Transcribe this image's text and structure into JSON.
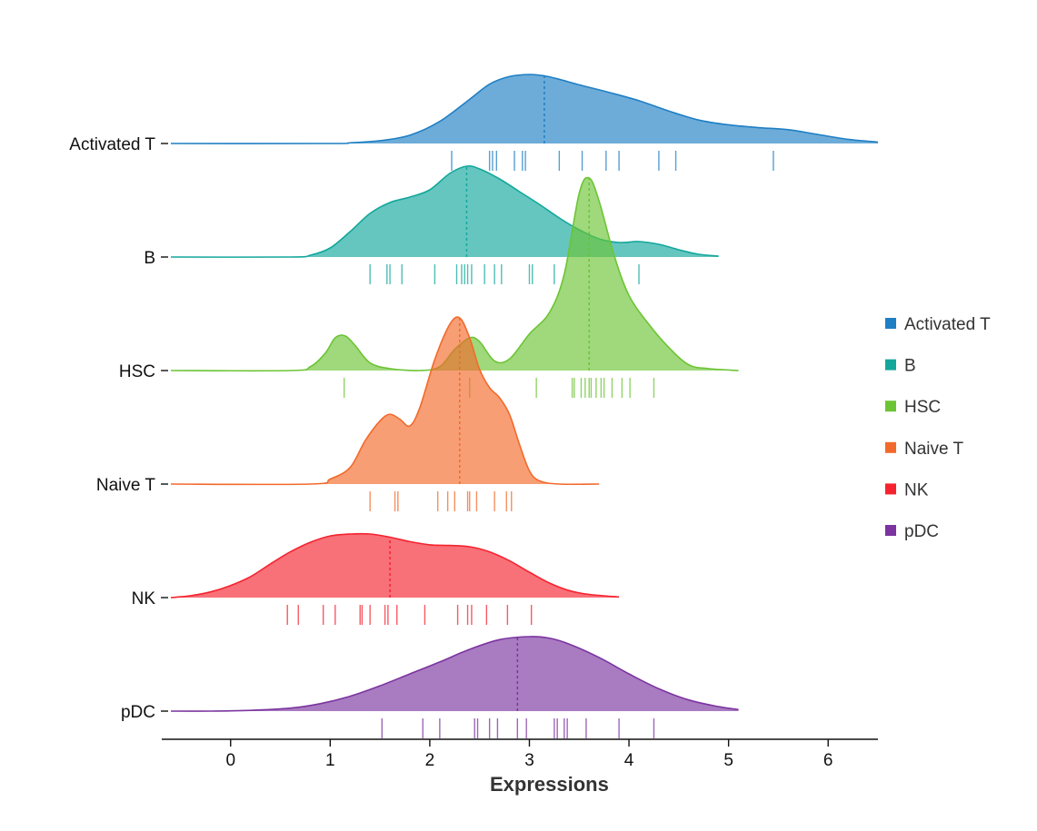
{
  "chart_data": {
    "type": "ridgeline",
    "xlabel": "Expressions",
    "xlim": [
      -0.6,
      6.5
    ],
    "xticks": [
      0,
      1,
      2,
      3,
      4,
      5,
      6
    ],
    "legend_position": "right",
    "grid": false,
    "series": [
      {
        "name": "Activated T",
        "color": "#1f7fc4",
        "median": 3.15,
        "xmax": 6.5,
        "rug": [
          2.22,
          2.6,
          2.63,
          2.67,
          2.85,
          2.93,
          2.96,
          3.3,
          3.53,
          3.77,
          3.9,
          4.3,
          4.47,
          5.45
        ],
        "density": [
          [
            -0.6,
            0
          ],
          [
            1,
            0
          ],
          [
            1.2,
            0.01
          ],
          [
            1.5,
            0.04
          ],
          [
            1.8,
            0.12
          ],
          [
            2.1,
            0.32
          ],
          [
            2.4,
            0.64
          ],
          [
            2.6,
            0.86
          ],
          [
            2.8,
            0.97
          ],
          [
            3.0,
            1.0
          ],
          [
            3.15,
            0.98
          ],
          [
            3.3,
            0.93
          ],
          [
            3.5,
            0.85
          ],
          [
            3.8,
            0.74
          ],
          [
            4.1,
            0.62
          ],
          [
            4.4,
            0.47
          ],
          [
            4.7,
            0.34
          ],
          [
            5.0,
            0.27
          ],
          [
            5.3,
            0.23
          ],
          [
            5.6,
            0.2
          ],
          [
            5.9,
            0.13
          ],
          [
            6.2,
            0.06
          ],
          [
            6.5,
            0.02
          ]
        ]
      },
      {
        "name": "B",
        "color": "#13a79c",
        "median": 2.37,
        "xmax": 4.9,
        "rug": [
          1.4,
          1.57,
          1.6,
          1.72,
          2.05,
          2.27,
          2.32,
          2.35,
          2.38,
          2.42,
          2.55,
          2.65,
          2.72,
          3.0,
          3.03,
          3.25,
          4.1
        ],
        "density": [
          [
            -0.6,
            0
          ],
          [
            0.6,
            0
          ],
          [
            0.8,
            0.02
          ],
          [
            1.0,
            0.1
          ],
          [
            1.2,
            0.28
          ],
          [
            1.4,
            0.48
          ],
          [
            1.6,
            0.6
          ],
          [
            1.8,
            0.66
          ],
          [
            2.0,
            0.74
          ],
          [
            2.2,
            0.92
          ],
          [
            2.37,
            1.0
          ],
          [
            2.5,
            0.97
          ],
          [
            2.7,
            0.86
          ],
          [
            2.9,
            0.72
          ],
          [
            3.1,
            0.58
          ],
          [
            3.3,
            0.43
          ],
          [
            3.5,
            0.3
          ],
          [
            3.7,
            0.2
          ],
          [
            3.9,
            0.16
          ],
          [
            4.1,
            0.17
          ],
          [
            4.3,
            0.14
          ],
          [
            4.5,
            0.08
          ],
          [
            4.7,
            0.03
          ],
          [
            4.9,
            0.01
          ]
        ]
      },
      {
        "name": "HSC",
        "color": "#6cc434",
        "median": 3.6,
        "xmax": 5.1,
        "rug": [
          1.14,
          2.4,
          3.07,
          3.43,
          3.45,
          3.52,
          3.56,
          3.6,
          3.62,
          3.67,
          3.72,
          3.75,
          3.83,
          3.93,
          4.01,
          4.25
        ],
        "density": [
          [
            -0.6,
            0
          ],
          [
            0.6,
            0
          ],
          [
            0.8,
            0.02
          ],
          [
            0.95,
            0.09
          ],
          [
            1.05,
            0.17
          ],
          [
            1.15,
            0.18
          ],
          [
            1.25,
            0.13
          ],
          [
            1.4,
            0.04
          ],
          [
            1.6,
            0.01
          ],
          [
            1.9,
            0
          ],
          [
            2.1,
            0.02
          ],
          [
            2.25,
            0.11
          ],
          [
            2.4,
            0.17
          ],
          [
            2.5,
            0.15
          ],
          [
            2.65,
            0.05
          ],
          [
            2.8,
            0.06
          ],
          [
            3.0,
            0.19
          ],
          [
            3.2,
            0.3
          ],
          [
            3.35,
            0.5
          ],
          [
            3.5,
            0.92
          ],
          [
            3.6,
            1.0
          ],
          [
            3.7,
            0.88
          ],
          [
            3.85,
            0.6
          ],
          [
            4.0,
            0.39
          ],
          [
            4.2,
            0.24
          ],
          [
            4.4,
            0.12
          ],
          [
            4.6,
            0.03
          ],
          [
            4.8,
            0.01
          ],
          [
            5.1,
            0
          ]
        ]
      },
      {
        "name": "Naive T",
        "color": "#f26a2b",
        "median": 2.3,
        "xmax": 3.7,
        "rug": [
          1.4,
          1.65,
          1.68,
          2.08,
          2.18,
          2.25,
          2.38,
          2.4,
          2.47,
          2.65,
          2.77,
          2.82
        ],
        "density": [
          [
            -0.6,
            0
          ],
          [
            0.8,
            0
          ],
          [
            1.0,
            0.03
          ],
          [
            1.2,
            0.1
          ],
          [
            1.35,
            0.26
          ],
          [
            1.5,
            0.38
          ],
          [
            1.6,
            0.42
          ],
          [
            1.7,
            0.39
          ],
          [
            1.8,
            0.35
          ],
          [
            1.9,
            0.46
          ],
          [
            2.05,
            0.75
          ],
          [
            2.2,
            0.96
          ],
          [
            2.3,
            1.0
          ],
          [
            2.4,
            0.88
          ],
          [
            2.5,
            0.69
          ],
          [
            2.6,
            0.58
          ],
          [
            2.7,
            0.52
          ],
          [
            2.8,
            0.42
          ],
          [
            2.9,
            0.24
          ],
          [
            3.0,
            0.08
          ],
          [
            3.1,
            0.02
          ],
          [
            3.3,
            0
          ],
          [
            3.7,
            0
          ]
        ]
      },
      {
        "name": "NK",
        "color": "#f5232f",
        "median": 1.6,
        "xmax": 3.9,
        "rug": [
          0.57,
          0.68,
          0.93,
          1.05,
          1.3,
          1.32,
          1.4,
          1.55,
          1.58,
          1.67,
          1.95,
          2.28,
          2.38,
          2.42,
          2.57,
          2.78,
          3.02
        ],
        "density": [
          [
            -0.6,
            0
          ],
          [
            -0.4,
            0.03
          ],
          [
            -0.2,
            0.09
          ],
          [
            0.0,
            0.19
          ],
          [
            0.2,
            0.33
          ],
          [
            0.4,
            0.53
          ],
          [
            0.6,
            0.72
          ],
          [
            0.8,
            0.87
          ],
          [
            1.0,
            0.97
          ],
          [
            1.2,
            1.0
          ],
          [
            1.4,
            1.0
          ],
          [
            1.6,
            0.95
          ],
          [
            1.8,
            0.88
          ],
          [
            2.0,
            0.83
          ],
          [
            2.2,
            0.82
          ],
          [
            2.4,
            0.8
          ],
          [
            2.6,
            0.72
          ],
          [
            2.8,
            0.58
          ],
          [
            3.0,
            0.4
          ],
          [
            3.2,
            0.23
          ],
          [
            3.4,
            0.11
          ],
          [
            3.6,
            0.05
          ],
          [
            3.9,
            0.01
          ]
        ]
      },
      {
        "name": "pDC",
        "color": "#7b34a0",
        "median": 2.88,
        "xmax": 5.1,
        "rug": [
          1.52,
          1.93,
          2.1,
          2.45,
          2.48,
          2.6,
          2.68,
          2.88,
          2.97,
          3.25,
          3.28,
          3.35,
          3.38,
          3.57,
          3.9,
          4.25
        ],
        "density": [
          [
            -0.6,
            0
          ],
          [
            -0.2,
            0
          ],
          [
            0.2,
            0.01
          ],
          [
            0.6,
            0.04
          ],
          [
            0.9,
            0.1
          ],
          [
            1.2,
            0.2
          ],
          [
            1.5,
            0.34
          ],
          [
            1.8,
            0.5
          ],
          [
            2.1,
            0.66
          ],
          [
            2.4,
            0.83
          ],
          [
            2.7,
            0.96
          ],
          [
            3.0,
            1.0
          ],
          [
            3.2,
            0.98
          ],
          [
            3.4,
            0.9
          ],
          [
            3.7,
            0.72
          ],
          [
            4.0,
            0.5
          ],
          [
            4.3,
            0.3
          ],
          [
            4.6,
            0.15
          ],
          [
            4.9,
            0.06
          ],
          [
            5.1,
            0.02
          ]
        ]
      }
    ]
  }
}
